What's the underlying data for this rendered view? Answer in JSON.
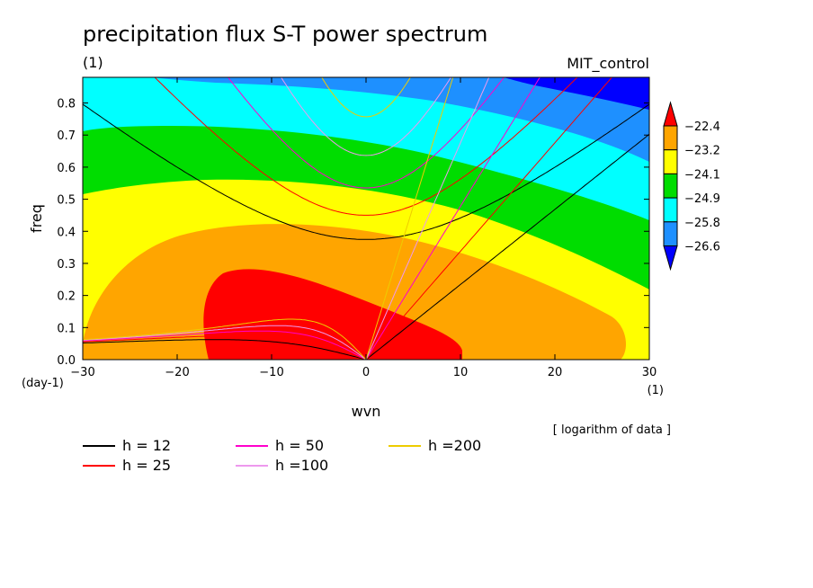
{
  "chart_data": {
    "type": "heatmap",
    "title": "precipitation flux S-T power spectrum",
    "subtitle_left": "(1)",
    "subtitle_right": "MIT_control",
    "xlabel": "wvn",
    "ylabel": "freq",
    "x_unit": "(1)",
    "y_unit": "(day-1)",
    "xlim": [
      -30,
      30
    ],
    "ylim": [
      0,
      0.88
    ],
    "x_ticks": [
      -30,
      -20,
      -10,
      0,
      10,
      20,
      30
    ],
    "y_ticks": [
      0.0,
      0.1,
      0.2,
      0.3,
      0.4,
      0.5,
      0.6,
      0.7,
      0.8
    ],
    "contour_levels": [
      -22.4,
      -23.2,
      -24.1,
      -24.9,
      -25.8,
      -26.6
    ],
    "colorbar_colors": [
      "#ff0000",
      "#ffa500",
      "#ffff00",
      "#00dd00",
      "#00ffff",
      "#1e90ff",
      "#0000ff"
    ],
    "colorbar_labels": [
      "-22.4",
      "-23.2",
      "-24.1",
      "-24.9",
      "-25.8",
      "-26.6"
    ],
    "note": "[ logarithm of data ]",
    "dispersion_curves": [
      {
        "h": 12,
        "label": "h = 12",
        "color": "#000000"
      },
      {
        "h": 25,
        "label": "h = 25",
        "color": "#ff0000"
      },
      {
        "h": 50,
        "label": "h = 50",
        "color": "#ff00cc"
      },
      {
        "h": 100,
        "label": "h =100",
        "color": "#ee99ee"
      },
      {
        "h": 200,
        "label": "h =200",
        "color": "#eecc00"
      }
    ]
  }
}
